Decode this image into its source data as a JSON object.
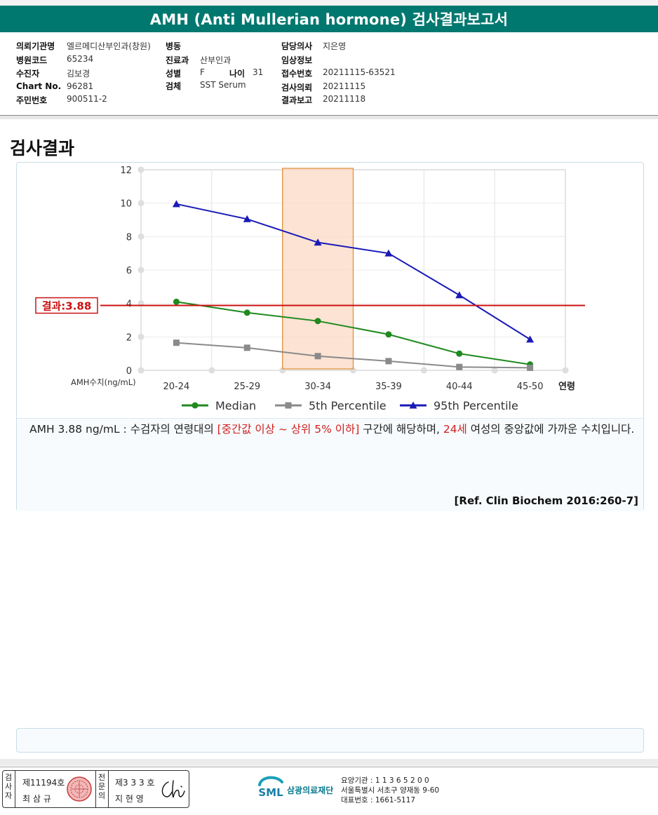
{
  "report": {
    "title": "AMH (Anti Mullerian hormone) 검사결과보고서"
  },
  "info": {
    "institution_label": "의뢰기관명",
    "institution_value": "엘르메디산부인과(창원)",
    "hospital_code_label": "병원코드",
    "hospital_code_value": "65234",
    "examinee_label": "수진자",
    "examinee_value": "김보경",
    "chart_no_label": "Chart No.",
    "chart_no_value": "96281",
    "resident_no_label": "주민번호",
    "resident_no_value": "900511-2",
    "ward_label": "병동",
    "ward_value": "",
    "department_label": "진료과",
    "department_value": "산부인과",
    "sex_label": "성별",
    "sex_value": "F",
    "age_label": "나이",
    "age_value": "31",
    "specimen_label": "검체",
    "specimen_value": "SST Serum",
    "doctor_label": "담당의사",
    "doctor_value": "지은영",
    "clinical_label": "임상정보",
    "clinical_value": "",
    "receipt_label": "접수번호",
    "receipt_value": "20211115-63521",
    "request_label": "검사의뢰",
    "request_value": "20211115",
    "result_label": "결과보고",
    "result_value": "20211118"
  },
  "section_title": "검사결과",
  "chart_data": {
    "type": "line",
    "categories": [
      "20-24",
      "25-29",
      "30-34",
      "35-39",
      "40-44",
      "45-50"
    ],
    "x_axis_suffix": "연령",
    "ylabel": "AMH수치(ng/mL)",
    "ylim": [
      0,
      12
    ],
    "yticks": [
      0,
      2,
      4,
      6,
      8,
      10,
      12
    ],
    "grid": true,
    "legend_position": "bottom",
    "series": [
      {
        "name": "Median",
        "values": [
          4.1,
          3.45,
          2.95,
          2.15,
          1.0,
          0.35
        ],
        "color": "#1f8a1f",
        "marker": "circle"
      },
      {
        "name": "5th Percentile",
        "values": [
          1.65,
          1.35,
          0.85,
          0.55,
          0.2,
          0.15
        ],
        "color": "#8a8a8a",
        "marker": "square"
      },
      {
        "name": "95th Percentile",
        "values": [
          9.95,
          9.05,
          7.65,
          7.0,
          4.5,
          1.85
        ],
        "color": "#1a1ab8",
        "marker": "triangle"
      }
    ],
    "highlight_category": "30-34",
    "highlight_color": "#fbd9c4",
    "result_value": 3.88,
    "result_label": "결과:3.88",
    "result_color": "#cc1111"
  },
  "description": {
    "part1": "AMH 3.88 ng/mL : 수검자의 연령대의 ",
    "part2_red": "[중간값 이상 ~ 상위 5% 이하]",
    "part3": " 구간에 해당하며, ",
    "part4_red": "24세",
    "part5": " 여성의 중앙값에 가까운 수치입니다.",
    "reference": "[Ref. Clin Biochem 2016:260-7]"
  },
  "footer": {
    "tester_label": "검사자",
    "tester_no": "제11194호",
    "tester_name": "최 삼 규",
    "doctor_label": "전문의",
    "doctor_no": "제3 3 3 호",
    "doctor_name": "지 현 영",
    "signature": "Ch",
    "logo_text": "SML",
    "org_name": "삼광의료재단",
    "code_line": "요양기관 : 1 1 3 6 5 2 0 0",
    "address_line": "서울특별시 서초구 양재동 9-60",
    "phone_line": "대표번호 : 1661-5117"
  }
}
